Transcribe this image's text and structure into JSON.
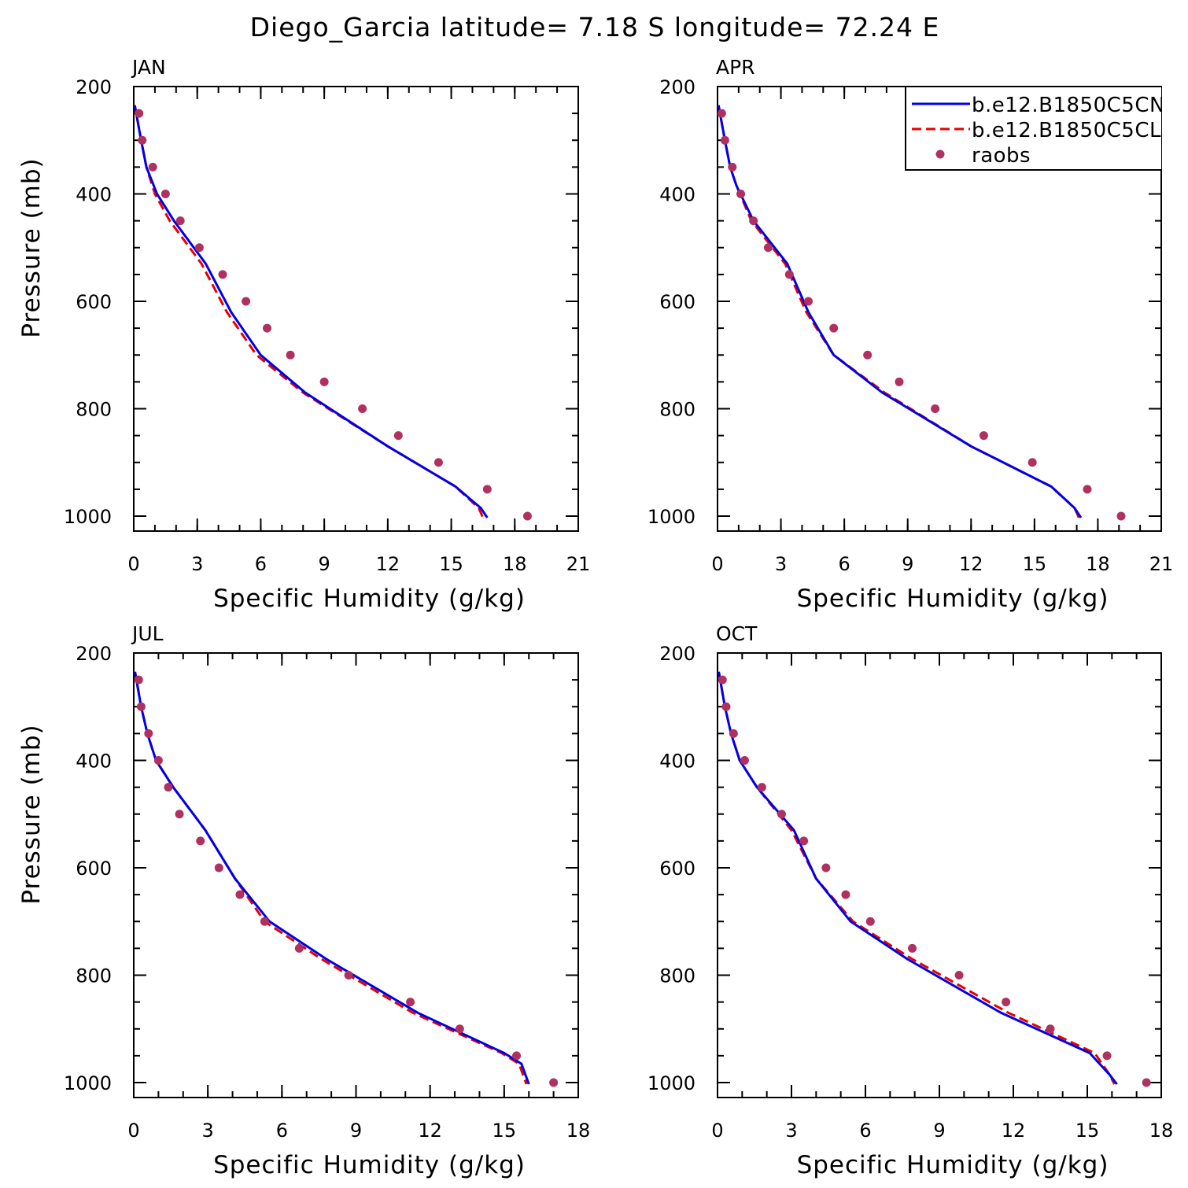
{
  "title": "Diego_Garcia  latitude= 7.18 S longitude= 72.24 E",
  "colors": {
    "series1": "#0000e6",
    "series2": "#e60000",
    "obs": "#b03060"
  },
  "legend": {
    "placement": "top-right of APR panel",
    "items": [
      {
        "label": "b.e12.B1850C5CN",
        "style": "solid-line"
      },
      {
        "label": "b.e12.B1850C5CL",
        "style": "dashed-line"
      },
      {
        "label": "raobs",
        "style": "dot"
      }
    ]
  },
  "chart_data": [
    {
      "type": "line",
      "title": "JAN",
      "xlabel": "Specific Humidity (g/kg)",
      "ylabel": "Pressure (mb)",
      "xlim": [
        0,
        21
      ],
      "ylim": [
        200,
        1000
      ],
      "y_inverted": true,
      "xticks": [
        0,
        3,
        6,
        9,
        12,
        15,
        18,
        21
      ],
      "yticks": [
        200,
        400,
        600,
        800,
        1000
      ],
      "series": [
        {
          "name": "b.e12.B1850C5CN",
          "x": [
            0.05,
            0.35,
            0.6,
            1.1,
            1.9,
            3.4,
            4.6,
            6.0,
            8.1,
            12.0,
            15.2,
            16.4,
            16.7
          ],
          "y": [
            235,
            300,
            350,
            400,
            450,
            530,
            620,
            700,
            770,
            870,
            945,
            985,
            1003
          ]
        },
        {
          "name": "b.e12.B1850C5CL",
          "x": [
            0.05,
            0.35,
            0.6,
            1.0,
            1.7,
            3.2,
            4.4,
            5.8,
            8.0,
            12.0,
            15.2,
            16.3,
            16.5
          ],
          "y": [
            235,
            300,
            350,
            400,
            450,
            530,
            620,
            700,
            770,
            870,
            945,
            985,
            1003
          ]
        },
        {
          "name": "raobs",
          "x": [
            0.25,
            0.4,
            0.9,
            1.5,
            2.2,
            3.1,
            4.2,
            5.3,
            6.3,
            7.4,
            9.0,
            10.8,
            12.5,
            14.4,
            16.7,
            18.6
          ],
          "y": [
            250,
            300,
            350,
            400,
            450,
            500,
            550,
            600,
            650,
            700,
            750,
            800,
            850,
            900,
            950,
            1000
          ]
        }
      ]
    },
    {
      "type": "line",
      "title": "APR",
      "xlabel": "Specific Humidity (g/kg)",
      "ylabel": "Pressure (mb)",
      "xlim": [
        0,
        21
      ],
      "ylim": [
        200,
        1000
      ],
      "y_inverted": true,
      "xticks": [
        0,
        3,
        6,
        9,
        12,
        15,
        18,
        21
      ],
      "yticks": [
        200,
        400,
        600,
        800,
        1000
      ],
      "series": [
        {
          "name": "b.e12.B1850C5CN",
          "x": [
            0.05,
            0.35,
            0.6,
            0.9,
            1.7,
            3.3,
            4.3,
            5.5,
            7.8,
            12.0,
            15.8,
            16.9,
            17.2
          ],
          "y": [
            235,
            300,
            350,
            385,
            450,
            530,
            620,
            700,
            770,
            870,
            945,
            985,
            1003
          ]
        },
        {
          "name": "b.e12.B1850C5CL",
          "x": [
            0.05,
            0.35,
            0.6,
            0.9,
            1.6,
            3.2,
            4.2,
            5.5,
            7.9,
            12.0,
            15.8,
            16.9,
            17.1
          ],
          "y": [
            235,
            300,
            350,
            385,
            450,
            530,
            620,
            700,
            770,
            870,
            945,
            985,
            1003
          ]
        },
        {
          "name": "raobs",
          "x": [
            0.2,
            0.35,
            0.7,
            1.1,
            1.7,
            2.4,
            3.4,
            4.3,
            5.5,
            7.1,
            8.6,
            10.3,
            12.6,
            14.9,
            17.5,
            19.1
          ],
          "y": [
            250,
            300,
            350,
            400,
            450,
            500,
            550,
            600,
            650,
            700,
            750,
            800,
            850,
            900,
            950,
            1000
          ]
        }
      ]
    },
    {
      "type": "line",
      "title": "JUL",
      "xlabel": "Specific Humidity (g/kg)",
      "ylabel": "Pressure (mb)",
      "xlim": [
        0,
        18
      ],
      "ylim": [
        200,
        1000
      ],
      "y_inverted": true,
      "xticks": [
        0,
        3,
        6,
        9,
        12,
        15,
        18
      ],
      "yticks": [
        200,
        400,
        600,
        800,
        1000
      ],
      "series": [
        {
          "name": "b.e12.B1850C5CN",
          "x": [
            0.05,
            0.3,
            0.55,
            0.9,
            1.6,
            2.9,
            4.1,
            5.5,
            7.8,
            11.5,
            15.0,
            15.7,
            16.0
          ],
          "y": [
            235,
            300,
            350,
            400,
            450,
            530,
            620,
            700,
            770,
            870,
            945,
            965,
            1003
          ]
        },
        {
          "name": "b.e12.B1850C5CL",
          "x": [
            0.05,
            0.3,
            0.55,
            0.9,
            1.6,
            2.9,
            4.1,
            5.3,
            7.6,
            11.3,
            14.9,
            15.6,
            15.9
          ],
          "y": [
            235,
            300,
            350,
            400,
            450,
            530,
            620,
            700,
            770,
            870,
            945,
            965,
            1003
          ]
        },
        {
          "name": "raobs",
          "x": [
            0.2,
            0.3,
            0.6,
            1.0,
            1.4,
            1.85,
            2.7,
            3.45,
            4.3,
            5.3,
            6.7,
            8.7,
            11.2,
            13.2,
            15.5,
            17.0
          ],
          "y": [
            250,
            300,
            350,
            400,
            450,
            500,
            550,
            600,
            650,
            700,
            750,
            800,
            850,
            900,
            950,
            1000
          ]
        }
      ]
    },
    {
      "type": "line",
      "title": "OCT",
      "xlabel": "Specific Humidity (g/kg)",
      "ylabel": "Pressure (mb)",
      "xlim": [
        0,
        18
      ],
      "ylim": [
        200,
        1000
      ],
      "y_inverted": true,
      "xticks": [
        0,
        3,
        6,
        9,
        12,
        15,
        18
      ],
      "yticks": [
        200,
        400,
        600,
        800,
        1000
      ],
      "series": [
        {
          "name": "b.e12.B1850C5CN",
          "x": [
            0.05,
            0.3,
            0.55,
            0.9,
            1.6,
            3.1,
            4.0,
            5.4,
            7.7,
            11.5,
            15.1,
            15.9,
            16.2
          ],
          "y": [
            235,
            300,
            350,
            400,
            450,
            530,
            620,
            700,
            770,
            870,
            945,
            985,
            1003
          ]
        },
        {
          "name": "b.e12.B1850C5CL",
          "x": [
            0.05,
            0.3,
            0.55,
            0.9,
            1.6,
            3.0,
            4.0,
            5.5,
            7.9,
            11.8,
            15.3,
            15.9,
            16.1
          ],
          "y": [
            235,
            300,
            350,
            400,
            450,
            530,
            620,
            700,
            770,
            870,
            945,
            985,
            1003
          ]
        },
        {
          "name": "raobs",
          "x": [
            0.2,
            0.35,
            0.65,
            1.1,
            1.8,
            2.6,
            3.5,
            4.4,
            5.2,
            6.2,
            7.9,
            9.8,
            11.7,
            13.5,
            15.8,
            17.4
          ],
          "y": [
            250,
            300,
            350,
            400,
            450,
            500,
            550,
            600,
            650,
            700,
            750,
            800,
            850,
            900,
            950,
            1000
          ]
        }
      ]
    }
  ]
}
